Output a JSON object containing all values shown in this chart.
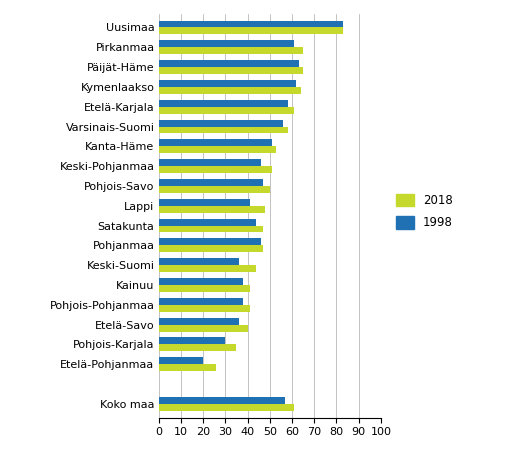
{
  "categories": [
    "Uusimaa",
    "Pirkanmaa",
    "Päijät-Häme",
    "Kymenlaakso",
    "Etelä-Karjala",
    "Varsinais-Suomi",
    "Kanta-Häme",
    "Keski-Pohjanmaa",
    "Pohjois-Savo",
    "Lappi",
    "Satakunta",
    "Pohjanmaa",
    "Keski-Suomi",
    "Kainuu",
    "Pohjois-Pohjanmaa",
    "Etelä-Savo",
    "Pohjois-Karjala",
    "Etelä-Pohjanmaa",
    "Koko maa"
  ],
  "values_2018": [
    83,
    65,
    65,
    64,
    61,
    58,
    53,
    51,
    50,
    48,
    47,
    47,
    44,
    41,
    41,
    40,
    35,
    26,
    61
  ],
  "values_1998": [
    83,
    61,
    63,
    62,
    58,
    56,
    51,
    46,
    47,
    41,
    44,
    46,
    36,
    38,
    38,
    36,
    30,
    20,
    57
  ],
  "color_2018": "#c5d92d",
  "color_1998": "#2070b4",
  "xlim": [
    0,
    100
  ],
  "xticks": [
    0,
    10,
    20,
    30,
    40,
    50,
    60,
    70,
    80,
    90,
    100
  ],
  "legend_2018": "2018",
  "legend_1998": "1998",
  "bar_height": 0.35,
  "gap_before_last": true
}
